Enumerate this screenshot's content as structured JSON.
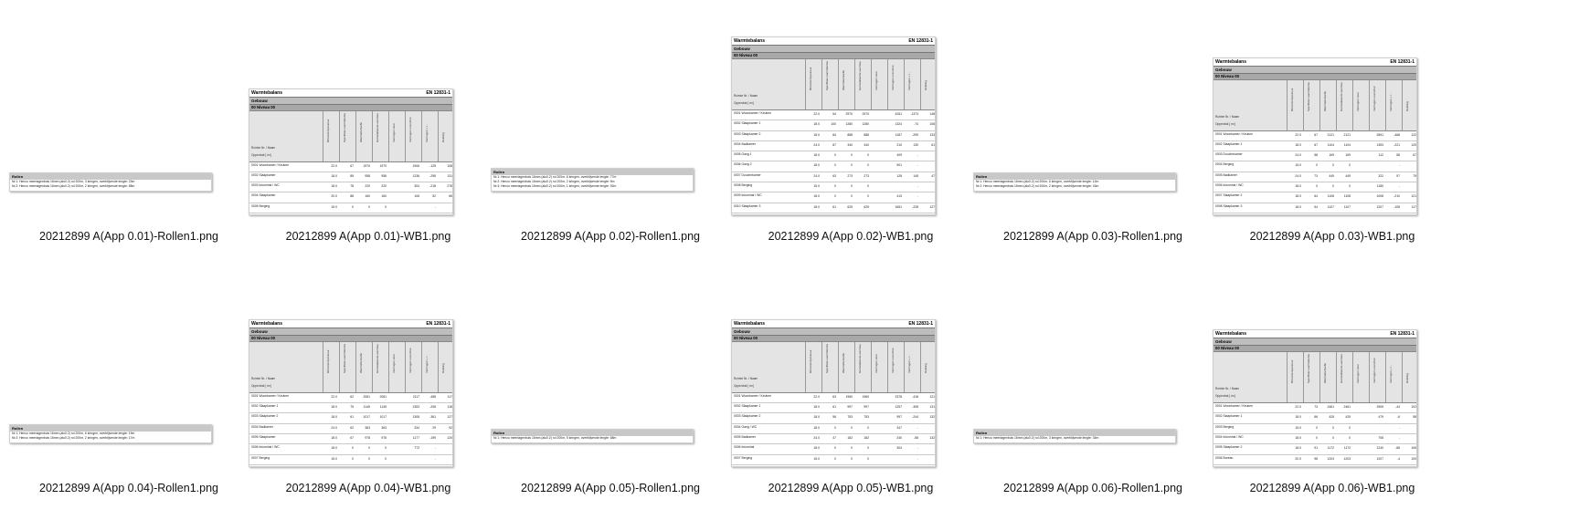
{
  "files": [
    {
      "name": "20212899 A(App 0.01)-Rollen1.png",
      "kind": "rollen",
      "thumb": {
        "header": "Rollen",
        "lines": [
          "Nr.1: Henco meerlagenbuis 16mm (alu0.2) rol 200m, 3 kringen, overblijvende lengte: 23m",
          "Nr.2: Henco meerlagenbuis 16mm (alu0.2) rol 200m, 2 kringen, overblijvende lengte: 58m"
        ]
      }
    },
    {
      "name": "20212899 A(App 0.01)-WB1.png",
      "kind": "wb",
      "thumb": {
        "title": "Warmtebalans",
        "norm": "EN 12831-1",
        "section": "Gebouw",
        "level": "00 Niveau 00",
        "rooms": [
          {
            "name": "0001 Woonkamer / Keuken",
            "vals": [
              "22.0",
              "67",
              "1970",
              "1970",
              "",
              "1906",
              "-125",
              "108"
            ]
          },
          {
            "name": "0002 Slaapkamer",
            "vals": [
              "18.0",
              "85",
              "958",
              "958",
              "",
              "1236",
              "-298",
              "131"
            ]
          },
          {
            "name": "0003 Inkomhal / WC",
            "vals": [
              "18.0",
              "78",
              "220",
              "220",
              "",
              "304",
              "-218",
              "276"
            ]
          },
          {
            "name": "0004 Slaapkamer",
            "vals": [
              "20.0",
              "88",
              "160",
              "160",
              "",
              "106",
              "52",
              "66"
            ]
          },
          {
            "name": "0005 Berging",
            "vals": [
              "15.0",
              "0",
              "0",
              "0",
              "",
              "",
              "-",
              ""
            ]
          }
        ]
      }
    },
    {
      "name": "20212899 A(App 0.02)-Rollen1.png",
      "kind": "rollen",
      "thumb": {
        "header": "Rollen",
        "lines": [
          "Nr.1: Henco meerlagenbuis 16mm (alu0.2) rol 200m, 6 kringen, overblijvende lengte: 77m",
          "Nr.2: Henco meerlagenbuis 16mm (alu0.2) rol 200m, 2 kringen, overblijvende lengte: 9m",
          "Nr.3: Henco meerlagenbuis 16mm (alu0.2) rol 200m, 1 kringen, overblijvende lengte: 92m"
        ]
      }
    },
    {
      "name": "20212899 A(App 0.02)-WB1.png",
      "kind": "wb",
      "thumb": {
        "title": "Warmtebalans",
        "norm": "EN 12831-1",
        "section": "Gebouw",
        "level": "00 Niveau 00",
        "rooms": [
          {
            "name": "0001 Woonkamer / Keuken",
            "vals": [
              "22.0",
              "54",
              "2970",
              "2970",
              "",
              "4251",
              "-1373",
              "148"
            ]
          },
          {
            "name": "0002 Slaapkamer 1",
            "vals": [
              "18.0",
              "100",
              "1280",
              "1280",
              "",
              "1324",
              "-74",
              "106"
            ]
          },
          {
            "name": "0003 Slaapkamer 2",
            "vals": [
              "18.0",
              "84",
              "888",
              "888",
              "",
              "1187",
              "-299",
              "133"
            ]
          },
          {
            "name": "0004 Badkamer",
            "vals": [
              "24.0",
              "87",
              "340",
              "340",
              "",
              "210",
              "130",
              "61"
            ]
          },
          {
            "name": "0005 Gang 1",
            "vals": [
              "18.0",
              "0",
              "0",
              "0",
              "",
              "409",
              "-",
              ""
            ]
          },
          {
            "name": "0006 Gang 2",
            "vals": [
              "18.0",
              "0",
              "0",
              "0",
              "",
              "501",
              "-",
              ""
            ]
          },
          {
            "name": "0007 Douchekamer",
            "vals": [
              "24.0",
              "63",
              "273",
              "273",
              "",
              "128",
              "145",
              "47"
            ]
          },
          {
            "name": "0008 Berging",
            "vals": [
              "15.0",
              "0",
              "0",
              "0",
              "",
              "",
              "-",
              ""
            ]
          },
          {
            "name": "0009 Inkomhal / WC",
            "vals": [
              "18.0",
              "0",
              "0",
              "0",
              "",
              "413",
              "-",
              ""
            ]
          },
          {
            "name": "0010 Slaapkamer 3",
            "vals": [
              "18.0",
              "61",
              "625",
              "625",
              "",
              "1651",
              "-228",
              "127"
            ]
          }
        ]
      }
    },
    {
      "name": "20212899 A(App 0.03)-Rollen1.png",
      "kind": "rollen",
      "thumb": {
        "header": "Rollen",
        "lines": [
          "Nr.1: Henco meerlagenbuis 16mm (alu0.2) rol 200m, 6 kringen, overblijvende lengte: 12m",
          "Nr.2: Henco meerlagenbuis 16mm (alu0.2) rol 200m, 2 kringen, overblijvende lengte: 43m"
        ]
      }
    },
    {
      "name": "20212899 A(App 0.03)-WB1.png",
      "kind": "wb",
      "thumb": {
        "title": "Warmtebalans",
        "norm": "EN 12831-1",
        "section": "Gebouw",
        "level": "00 Niveau 00",
        "rooms": [
          {
            "name": "0001 Woonkamer / Keuken",
            "vals": [
              "22.0",
              "67",
              "2121",
              "2121",
              "",
              "2891",
              "-468",
              "122"
            ]
          },
          {
            "name": "0002 Slaapkamer 1",
            "vals": [
              "18.0",
              "67",
              "1104",
              "1104",
              "",
              "1353",
              "-221",
              "120"
            ]
          },
          {
            "name": "0003 Douchekamer",
            "vals": [
              "24.0",
              "58",
              "169",
              "169",
              "",
              "112",
              "58",
              "67"
            ]
          },
          {
            "name": "0004 Berging",
            "vals": [
              "15.0",
              "0",
              "0",
              "0",
              "",
              "",
              "-",
              ""
            ]
          },
          {
            "name": "0005 Badkamer",
            "vals": [
              "24.0",
              "73",
              "449",
              "449",
              "",
              "322",
              "97",
              "79"
            ]
          },
          {
            "name": "0006 Inkomhal / WC",
            "vals": [
              "18.0",
              "0",
              "0",
              "0",
              "",
              "1180",
              "-",
              ""
            ]
          },
          {
            "name": "0007 Slaapkamer 2",
            "vals": [
              "18.0",
              "64",
              "1108",
              "1108",
              "",
              "1008",
              "-210",
              "121"
            ]
          },
          {
            "name": "0008 Slaapkamer 3",
            "vals": [
              "18.0",
              "54",
              "1107",
              "1107",
              "",
              "1207",
              "-108",
              "117"
            ]
          }
        ]
      }
    },
    {
      "name": "20212899 A(App 0.04)-Rollen1.png",
      "kind": "rollen",
      "thumb": {
        "header": "Rollen",
        "lines": [
          "Nr.1: Henco meerlagenbuis 16mm (alu0.2) rol 200m, 6 kringen, overblijvende lengte: 19m",
          "Nr.2: Henco meerlagenbuis 16mm (alu0.2) rol 200m, 2 kringen, overblijvende lengte: 17m"
        ]
      }
    },
    {
      "name": "20212899 A(App 0.04)-WB1.png",
      "kind": "wb",
      "thumb": {
        "title": "Warmtebalans",
        "norm": "EN 12831-1",
        "section": "Gebouw",
        "level": "00 Niveau 00",
        "rooms": [
          {
            "name": "0001 Woonkamer / Keuken",
            "vals": [
              "22.0",
              "62",
              "2081",
              "2081",
              "",
              "2117",
              "-458",
              "117"
            ]
          },
          {
            "name": "0002 Slaapkamer 1",
            "vals": [
              "18.0",
              "75",
              "1145",
              "1145",
              "",
              "1353",
              "-208",
              "118"
            ]
          },
          {
            "name": "0003 Slaapkamer 2",
            "vals": [
              "18.0",
              "61",
              "1017",
              "1017",
              "",
              "1308",
              "-361",
              "127"
            ]
          },
          {
            "name": "0004 Badkamer",
            "vals": [
              "24.0",
              "62",
              "363",
              "363",
              "",
              "334",
              "29",
              "92"
            ]
          },
          {
            "name": "0005 Slaapkamer",
            "vals": [
              "18.0",
              "67",
              "978",
              "978",
              "",
              "1177",
              "-199",
              "120"
            ]
          },
          {
            "name": "0006 Inkomhal / WC",
            "vals": [
              "18.0",
              "0",
              "0",
              "0",
              "",
              "772",
              "-",
              ""
            ]
          },
          {
            "name": "0007 Berging",
            "vals": [
              "15.0",
              "0",
              "0",
              "0",
              "",
              "",
              "-",
              ""
            ]
          }
        ]
      }
    },
    {
      "name": "20212899 A(App 0.05)-Rollen1.png",
      "kind": "rollen",
      "thumb": {
        "header": "Rollen",
        "lines": [
          "Nr.1: Henco meerlagenbuis 16mm (alu0.2) rol 200m, 5 kringen, overblijvende lengte: 68m"
        ]
      }
    },
    {
      "name": "20212899 A(App 0.05)-WB1.png",
      "kind": "wb",
      "thumb": {
        "title": "Warmtebalans",
        "norm": "EN 12831-1",
        "section": "Gebouw",
        "level": "00 Niveau 00",
        "rooms": [
          {
            "name": "0001 Woonkamer / Keuken",
            "vals": [
              "22.0",
              "63",
              "1960",
              "1960",
              "",
              "2378",
              "-418",
              "121"
            ]
          },
          {
            "name": "0002 Slaapkamer 1",
            "vals": [
              "18.0",
              "61",
              "997",
              "997",
              "",
              "1257",
              "-308",
              "131"
            ]
          },
          {
            "name": "0003 Slaapkamer 2",
            "vals": [
              "18.0",
              "56",
              "753",
              "753",
              "",
              "997",
              "-244",
              "132"
            ]
          },
          {
            "name": "0004 Gang / WC",
            "vals": [
              "18.0",
              "0",
              "0",
              "0",
              "",
              "347",
              "-",
              ""
            ]
          },
          {
            "name": "0005 Badkamer",
            "vals": [
              "24.0",
              "47",
              "182",
              "182",
              "",
              "240",
              "-58",
              "132"
            ]
          },
          {
            "name": "0006 Inkomhal",
            "vals": [
              "18.0",
              "0",
              "0",
              "0",
              "",
              "304",
              "-",
              ""
            ]
          },
          {
            "name": "0007 Berging",
            "vals": [
              "15.0",
              "0",
              "0",
              "0",
              "",
              "",
              "-",
              ""
            ]
          }
        ]
      }
    },
    {
      "name": "20212899 A(App 0.06)-Rollen1.png",
      "kind": "rollen",
      "thumb": {
        "header": "Rollen",
        "lines": [
          "Nr.1: Henco meerlagenbuis 16mm (alu0.2) rol 200m, 3 kringen, overblijvende lengte: 34m"
        ]
      }
    },
    {
      "name": "20212899 A(App 0.06)-WB1.png",
      "kind": "wb",
      "thumb": {
        "title": "Warmtebalans",
        "norm": "EN 12831-1",
        "section": "Gebouw",
        "level": "00 Niveau 00",
        "rooms": [
          {
            "name": "0001 Woonkamer / Keuken",
            "vals": [
              "22.0",
              "73",
              "2461",
              "2461",
              "",
              "2505",
              "-44",
              "102"
            ]
          },
          {
            "name": "0002 Slaapkamer 1",
            "vals": [
              "18.0",
              "66",
              "425",
              "425",
              "",
              "479",
              "-6",
              "98"
            ]
          },
          {
            "name": "0003 Berging",
            "vals": [
              "15.0",
              "0",
              "0",
              "0",
              "",
              "",
              "-",
              ""
            ]
          },
          {
            "name": "0004 Inkomhal / WC",
            "vals": [
              "18.0",
              "0",
              "0",
              "0",
              "",
              "708",
              "-",
              ""
            ]
          },
          {
            "name": "0005 Slaapkamer 2",
            "vals": [
              "18.0",
              "91",
              "1172",
              "1172",
              "",
              "1240",
              "-68",
              "106"
            ]
          },
          {
            "name": "0006 Bureau",
            "vals": [
              "20.0",
              "98",
              "1203",
              "1203",
              "",
              "1207",
              "-4",
              "100"
            ]
          }
        ]
      }
    }
  ],
  "wb_columns": [
    "Binnentemperatuur",
    "Specifieke warmtebehoefte",
    "Warmtebehoefte",
    "Geïnstalleerde warmteafgifte",
    "Vermogen vloer",
    "Vermogen overschot",
    "Vermogen + / -",
    "Dekking"
  ],
  "wb_labels": {
    "rooms": "Ruimte Nr. / Naam",
    "area": "Oppervlak [ m²]",
    "units": [
      "°C",
      "W/m²",
      "W",
      "%"
    ]
  }
}
